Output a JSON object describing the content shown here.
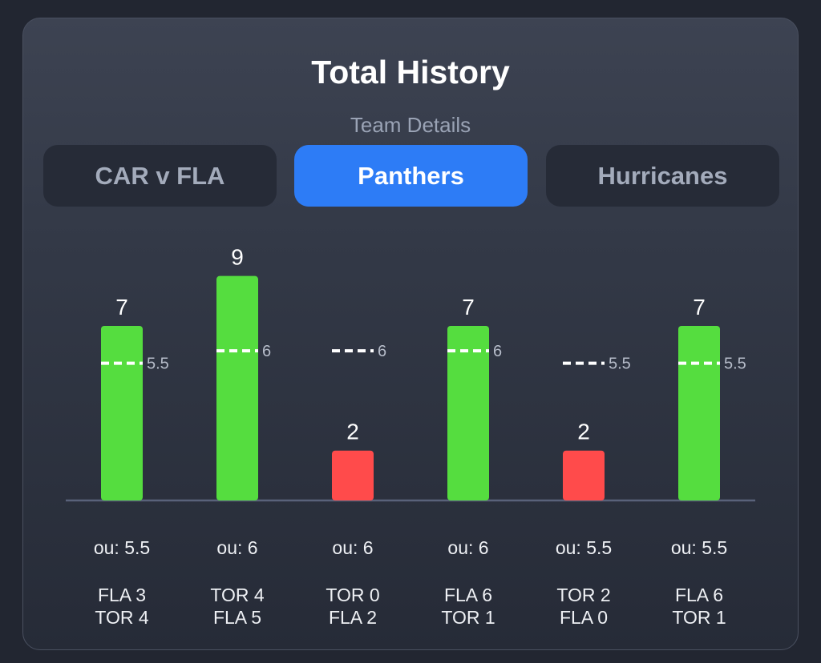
{
  "header": {
    "title": "Total History",
    "subtitle": "Team Details"
  },
  "tabs": [
    {
      "label": "CAR v FLA",
      "active": false
    },
    {
      "label": "Panthers",
      "active": true
    },
    {
      "label": "Hurricanes",
      "active": false
    }
  ],
  "colors": {
    "over": "#55dd3f",
    "under": "#ff4b4b",
    "accent": "#2d7cf6"
  },
  "chart_data": {
    "type": "bar",
    "title": "Total History",
    "ylim": [
      0,
      9
    ],
    "values": [
      7,
      9,
      2,
      7,
      2,
      7
    ],
    "value_labels": [
      "7",
      "9",
      "2",
      "7",
      "2",
      "7"
    ],
    "ou_lines": [
      5.5,
      6,
      6,
      6,
      5.5,
      5.5
    ],
    "ou_line_labels": [
      "5.5",
      "6",
      "6",
      "6",
      "5.5",
      "5.5"
    ],
    "ou_labels": [
      "ou: 5.5",
      "ou: 6",
      "ou: 6",
      "ou: 6",
      "ou: 5.5",
      "ou: 5.5"
    ],
    "results": [
      "over",
      "over",
      "under",
      "over",
      "under",
      "over"
    ],
    "scores": [
      [
        "FLA 3",
        "TOR 4"
      ],
      [
        "TOR 4",
        "FLA 5"
      ],
      [
        "TOR 0",
        "FLA 2"
      ],
      [
        "FLA 6",
        "TOR 1"
      ],
      [
        "TOR 2",
        "FLA 0"
      ],
      [
        "FLA 6",
        "TOR 1"
      ]
    ]
  }
}
